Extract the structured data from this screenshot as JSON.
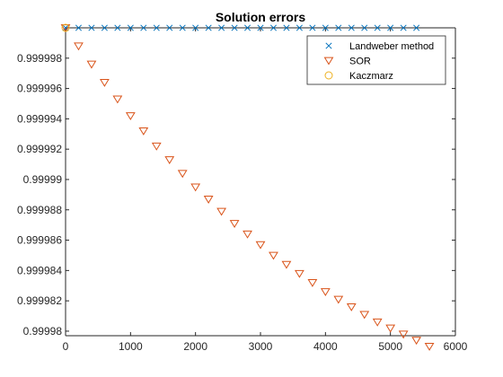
{
  "chart_data": {
    "type": "scatter",
    "title": "Solution errors",
    "xlabel": "",
    "ylabel": "",
    "xlim": [
      0,
      6000
    ],
    "ylim": [
      0.9999797,
      1.0
    ],
    "grid": false,
    "legend_position": "top-right",
    "x_ticks": [
      0,
      1000,
      2000,
      3000,
      4000,
      5000,
      6000
    ],
    "x_tick_labels": [
      "0",
      "1000",
      "2000",
      "3000",
      "4000",
      "5000",
      "6000"
    ],
    "y_ticks": [
      0.99998,
      0.999982,
      0.999984,
      0.999986,
      0.999988,
      0.99999,
      0.999992,
      0.999994,
      0.999996,
      0.999998
    ],
    "y_tick_labels": [
      "0.99998",
      "0.999982",
      "0.999984",
      "0.999986",
      "0.999988",
      "0.99999",
      "0.999992",
      "0.999994",
      "0.999996",
      "0.999998"
    ],
    "series": [
      {
        "name": "Landweber method",
        "marker": "x",
        "color": "#0072BD",
        "x": [
          0,
          200,
          400,
          600,
          800,
          1000,
          1200,
          1400,
          1600,
          1800,
          2000,
          2200,
          2400,
          2600,
          2800,
          3000,
          3200,
          3400,
          3600,
          3800,
          4000,
          4200,
          4400,
          4600,
          4800,
          5000,
          5200,
          5400
        ],
        "y": [
          1.0,
          1.0,
          1.0,
          1.0,
          1.0,
          1.0,
          1.0,
          1.0,
          1.0,
          1.0,
          1.0,
          1.0,
          1.0,
          1.0,
          1.0,
          1.0,
          1.0,
          1.0,
          1.0,
          1.0,
          1.0,
          1.0,
          1.0,
          1.0,
          1.0,
          1.0,
          1.0,
          1.0
        ]
      },
      {
        "name": "SOR",
        "marker": "triangle-down",
        "color": "#D95319",
        "x": [
          0,
          200,
          400,
          600,
          800,
          1000,
          1200,
          1400,
          1600,
          1800,
          2000,
          2200,
          2400,
          2600,
          2800,
          3000,
          3200,
          3400,
          3600,
          3800,
          4000,
          4200,
          4400,
          4600,
          4800,
          5000,
          5200,
          5400,
          5600
        ],
        "y": [
          1.0,
          0.9999988,
          0.9999976,
          0.9999964,
          0.9999953,
          0.9999942,
          0.9999932,
          0.9999922,
          0.9999913,
          0.9999904,
          0.9999895,
          0.9999887,
          0.9999879,
          0.9999871,
          0.9999864,
          0.9999857,
          0.999985,
          0.9999844,
          0.9999838,
          0.9999832,
          0.9999826,
          0.9999821,
          0.9999816,
          0.9999811,
          0.9999806,
          0.9999802,
          0.9999798,
          0.9999794,
          0.999979
        ]
      },
      {
        "name": "Kaczmarz",
        "marker": "circle",
        "color": "#EDB120",
        "x": [
          0
        ],
        "y": [
          1.0
        ]
      }
    ]
  }
}
